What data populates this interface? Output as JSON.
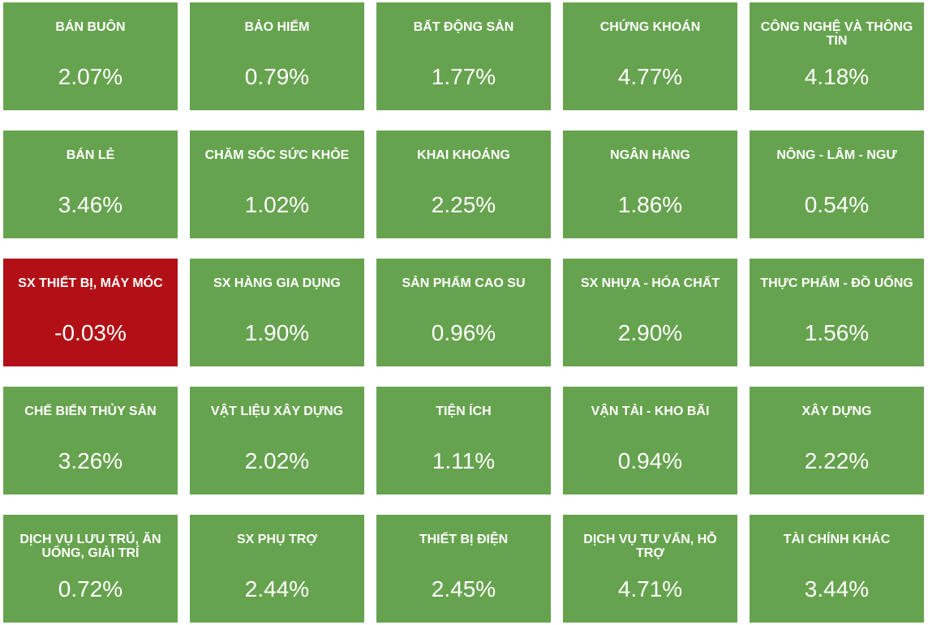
{
  "colors": {
    "positive": "#66a34e",
    "negative": "#b21016",
    "text": "#ffffff"
  },
  "sectors": [
    {
      "name": "BÁN BUÔN",
      "change": "2.07%",
      "direction": "up"
    },
    {
      "name": "BẢO HIỂM",
      "change": "0.79%",
      "direction": "up"
    },
    {
      "name": "BẤT ĐỘNG SẢN",
      "change": "1.77%",
      "direction": "up"
    },
    {
      "name": "CHỨNG KHOÁN",
      "change": "4.77%",
      "direction": "up"
    },
    {
      "name": "CÔNG NGHỆ VÀ THÔNG TIN",
      "change": "4.18%",
      "direction": "up"
    },
    {
      "name": "BÁN LẺ",
      "change": "3.46%",
      "direction": "up"
    },
    {
      "name": "CHĂM SÓC SỨC KHỎE",
      "change": "1.02%",
      "direction": "up"
    },
    {
      "name": "KHAI KHOÁNG",
      "change": "2.25%",
      "direction": "up"
    },
    {
      "name": "NGÂN HÀNG",
      "change": "1.86%",
      "direction": "up"
    },
    {
      "name": "NÔNG - LÂM - NGƯ",
      "change": "0.54%",
      "direction": "up"
    },
    {
      "name": "SX THIẾT BỊ, MÁY MÓC",
      "change": "-0.03%",
      "direction": "down"
    },
    {
      "name": "SX HÀNG GIA DỤNG",
      "change": "1.90%",
      "direction": "up"
    },
    {
      "name": "SẢN PHẨM CAO SU",
      "change": "0.96%",
      "direction": "up"
    },
    {
      "name": "SX NHỰA - HÓA CHẤT",
      "change": "2.90%",
      "direction": "up"
    },
    {
      "name": "THỰC PHẨM - ĐỒ UỐNG",
      "change": "1.56%",
      "direction": "up"
    },
    {
      "name": "CHẾ BIẾN THỦY SẢN",
      "change": "3.26%",
      "direction": "up"
    },
    {
      "name": "VẬT LIỆU XÂY DỰNG",
      "change": "2.02%",
      "direction": "up"
    },
    {
      "name": "TIỆN ÍCH",
      "change": "1.11%",
      "direction": "up"
    },
    {
      "name": "VẬN TẢI - KHO BÃI",
      "change": "0.94%",
      "direction": "up"
    },
    {
      "name": "XÂY DỰNG",
      "change": "2.22%",
      "direction": "up"
    },
    {
      "name": "DỊCH VỤ LƯU TRÚ, ĂN UỐNG, GIẢI TRÍ",
      "change": "0.72%",
      "direction": "up"
    },
    {
      "name": "SX PHỤ TRỢ",
      "change": "2.44%",
      "direction": "up"
    },
    {
      "name": "THIẾT BỊ ĐIỆN",
      "change": "2.45%",
      "direction": "up"
    },
    {
      "name": "DỊCH VỤ TƯ VẤN, HỖ TRỢ",
      "change": "4.71%",
      "direction": "up"
    },
    {
      "name": "TÀI CHÍNH KHÁC",
      "change": "3.44%",
      "direction": "up"
    }
  ]
}
